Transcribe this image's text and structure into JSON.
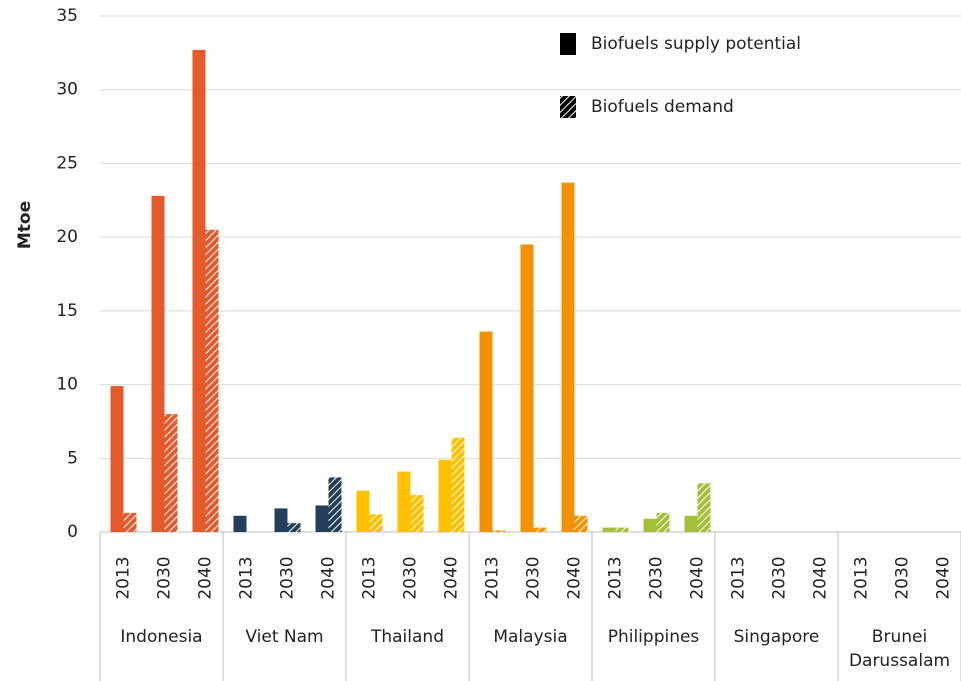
{
  "chart_data": {
    "type": "bar",
    "y_label": "Mtoe",
    "ylim": [
      0,
      35
    ],
    "yticks": [
      0,
      5,
      10,
      15,
      20,
      25,
      30,
      35
    ],
    "grid": true,
    "groups": [
      {
        "name": "Indonesia",
        "color": "#e55a2b",
        "categories": [
          "2013",
          "2030",
          "2040"
        ]
      },
      {
        "name": "Viet Nam",
        "color": "#243f5a",
        "categories": [
          "2013",
          "2030",
          "2040"
        ]
      },
      {
        "name": "Thailand",
        "color": "#ffc000",
        "categories": [
          "2013",
          "2030",
          "2040"
        ]
      },
      {
        "name": "Malaysia",
        "color": "#f39200",
        "categories": [
          "2013",
          "2030",
          "2040"
        ]
      },
      {
        "name": "Philippines",
        "color": "#a4bf3a",
        "categories": [
          "2013",
          "2030",
          "2040"
        ]
      },
      {
        "name": "Singapore",
        "color": "#7f7f7f",
        "categories": [
          "2013",
          "2030",
          "2040"
        ]
      },
      {
        "name": "Brunei Darussalam",
        "color": "#5b9bd5",
        "categories": [
          "2013",
          "2030",
          "2040"
        ]
      }
    ],
    "series": [
      {
        "name": "Biofuels supply potential",
        "pattern": "solid",
        "color": "#000000",
        "values": [
          9.9,
          22.8,
          32.7,
          1.1,
          1.6,
          1.8,
          2.8,
          4.1,
          4.9,
          13.6,
          19.5,
          23.7,
          0.3,
          0.9,
          1.1,
          0,
          0,
          0,
          0,
          0,
          0
        ]
      },
      {
        "name": "Biofuels demand",
        "pattern": "hatch",
        "color": "#000000",
        "values": [
          1.3,
          8.0,
          20.5,
          0,
          0.6,
          3.7,
          1.2,
          2.5,
          6.4,
          0.1,
          0.3,
          1.1,
          0.3,
          1.3,
          3.3,
          0,
          0,
          0,
          0,
          0,
          0
        ]
      }
    ]
  }
}
